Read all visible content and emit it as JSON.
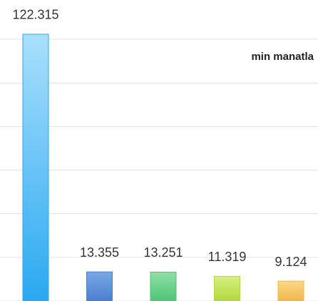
{
  "chart_data": {
    "type": "bar",
    "annotation": "min manatla",
    "values": [
      122.315,
      13.355,
      13.251,
      11.319,
      9.124
    ],
    "colors": [
      [
        "#a9e0fc",
        "#2aa8f0"
      ],
      [
        "#7aa8e6",
        "#4b7fcf"
      ],
      [
        "#8fe0a6",
        "#4fc476"
      ],
      [
        "#d8ef84",
        "#b0d83c"
      ],
      [
        "#fbd989",
        "#f2b64a"
      ]
    ],
    "ylim": [
      0,
      138
    ],
    "yticks": [
      0,
      20,
      40,
      60,
      80,
      100,
      120
    ],
    "grid": true
  }
}
